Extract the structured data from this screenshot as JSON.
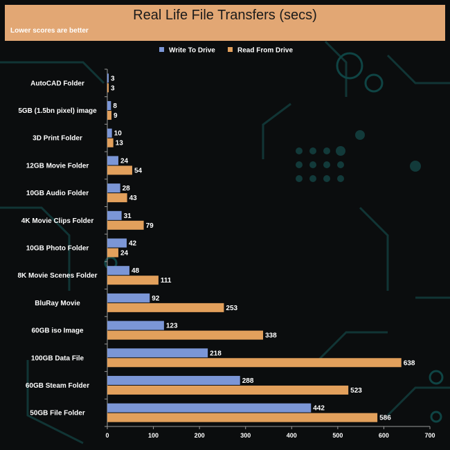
{
  "chart_data": {
    "type": "bar",
    "orientation": "horizontal",
    "title": "Real Life File Transfers (secs)",
    "subtitle": "Lower scores are better",
    "categories": [
      "AutoCAD Folder",
      "5GB (1.5bn pixel) image",
      "3D Print Folder",
      "12GB Movie Folder",
      "10GB Audio Folder",
      "4K Movie Clips Folder",
      "10GB Photo Folder",
      "8K Movie Scenes Folder",
      "BluRay Movie",
      "60GB iso Image",
      "100GB Data File",
      "60GB Steam Folder",
      "50GB File Folder"
    ],
    "series": [
      {
        "name": "Write To  Drive",
        "color": "#7b96d6",
        "values": [
          3,
          8,
          10,
          24,
          28,
          31,
          42,
          48,
          92,
          123,
          218,
          288,
          442
        ]
      },
      {
        "name": "Read From  Drive",
        "color": "#e2a05c",
        "values": [
          3,
          9,
          13,
          54,
          43,
          79,
          24,
          111,
          253,
          338,
          638,
          523,
          586
        ]
      }
    ],
    "xlim": [
      0,
      700
    ],
    "xticks": [
      0,
      100,
      200,
      300,
      400,
      500,
      600,
      700
    ],
    "xlabel": "",
    "ylabel": "",
    "legend": "top-center",
    "grid": false
  }
}
